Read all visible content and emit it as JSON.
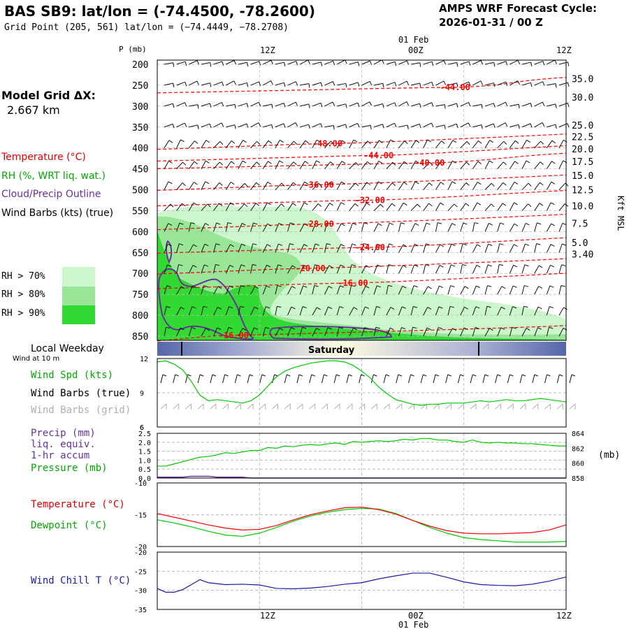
{
  "header": {
    "title": "BAS SB9:  lat/lon = (-74.4500, -78.2600)",
    "grid_point": "Grid Point (205, 561) lat/lon = (−74.4449, −78.2708)",
    "amps_line1": "AMPS WRF Forecast Cycle:",
    "amps_line2": "2026-01-31 / 00  Z"
  },
  "left_panel": {
    "model_grid_label": "Model Grid ΔX:",
    "model_grid_value": "2.667 km",
    "temperature_legend": "Temperature (°C)",
    "rh_legend": "RH (%, WRT liq. wat.)",
    "cloud_legend": "Cloud/Precip Outline",
    "wind_legend": "Wind Barbs (kts) (true)",
    "rh_levels": [
      "RH > 70%",
      "RH > 80%",
      "RH > 90%"
    ],
    "rh_colors": [
      "#ccf7cc",
      "#99e699",
      "#33d933"
    ],
    "local_weekday": "Local Weekday",
    "wind_at_10m": "Wind at 10 m",
    "wind_spd": "Wind Spd (kts)",
    "wind_barbs_true": "Wind Barbs (true)",
    "wind_barbs_grid": "Wind Barbs (grid)",
    "precip": "Precip (mm)",
    "liq_equiv": "liq. equiv.",
    "accum": "1-hr accum",
    "pressure": "Pressure (mb)",
    "temperature": "Temperature (°C)",
    "dewpoint": "Dewpoint (°C)",
    "wind_chill": "Wind Chill T (°C)"
  },
  "time_axis": {
    "top_date": "01 Feb",
    "bottom_date": "01 Feb",
    "ticks": [
      "12Z",
      "00Z",
      "12Z"
    ],
    "weekday": "Saturday"
  },
  "colors": {
    "temperature": "#ff0000",
    "rh_green": "#00cc00",
    "cloud": "#663399",
    "wind_grid": "#b0b0b0",
    "wind_chill": "#1a1aa6",
    "weekday_blue": "#5566aa",
    "weekday_light": "#fffbe0"
  },
  "chart_data": [
    {
      "type": "heatmap",
      "name": "cross-section",
      "ylabel": "P (mb)",
      "y_ticks": [
        200,
        250,
        300,
        350,
        400,
        450,
        500,
        550,
        600,
        650,
        700,
        750,
        800,
        850
      ],
      "ylim": [
        860,
        190
      ],
      "right_axis_label": "Kft MSL",
      "right_ticks": [
        "35.0",
        "30.0",
        "25.0",
        "22.5",
        "20.0",
        "17.5",
        "15.0",
        "12.5",
        "10.0",
        "7.5",
        "5.0",
        "3.40"
      ],
      "right_tick_pressures": [
        236,
        280,
        347,
        375,
        404,
        434,
        467,
        502,
        540,
        582,
        628,
        655
      ],
      "xlim_hours": [
        0,
        48
      ],
      "temperature_contours": [
        {
          "label": "-44.00",
          "p": 255,
          "x": 35
        },
        {
          "label": "-48.00",
          "p": 390,
          "x": 20
        },
        {
          "label": "-44.00",
          "p": 418,
          "x": 26
        },
        {
          "label": "-40.00",
          "p": 436,
          "x": 32
        },
        {
          "label": "-36.00",
          "p": 488,
          "x": 19
        },
        {
          "label": "-32.00",
          "p": 525,
          "x": 25
        },
        {
          "label": "-28.00",
          "p": 582,
          "x": 19
        },
        {
          "label": "-24.00",
          "p": 638,
          "x": 25
        },
        {
          "label": "-20.00",
          "p": 688,
          "x": 18
        },
        {
          "label": "-16.00",
          "p": 723,
          "x": 23
        },
        {
          "label": "-16.00",
          "p": 848,
          "x": 9
        }
      ]
    },
    {
      "type": "line",
      "name": "wind-speed",
      "ylim": [
        6,
        12
      ],
      "y_ticks": [
        6,
        9,
        12
      ],
      "x": [
        0,
        1,
        2,
        3,
        4,
        5,
        6,
        7,
        8,
        9,
        10,
        11,
        12,
        13,
        14,
        15,
        16,
        17,
        18,
        19,
        20,
        21,
        22,
        23,
        24,
        25,
        26,
        27,
        28,
        29,
        30,
        31,
        32,
        33,
        34,
        35,
        36,
        37,
        38,
        39,
        40,
        41,
        42,
        43,
        44,
        45,
        46,
        47,
        48
      ],
      "values": [
        11.7,
        11.8,
        11.5,
        11.0,
        10.0,
        8.8,
        8.3,
        8.4,
        8.3,
        8.2,
        8.1,
        8.3,
        8.8,
        9.6,
        10.4,
        10.9,
        11.2,
        11.4,
        11.6,
        11.7,
        11.8,
        11.8,
        11.7,
        11.4,
        10.9,
        10.3,
        9.5,
        8.9,
        8.4,
        8.2,
        8.0,
        7.9,
        8.0,
        8.0,
        8.1,
        8.1,
        8.1,
        8.2,
        8.3,
        8.2,
        8.3,
        8.4,
        8.3,
        8.3,
        8.4,
        8.5,
        8.4,
        8.3,
        8.2
      ]
    },
    {
      "type": "line",
      "name": "precip-pressure",
      "precip_ylim": [
        0,
        2.5
      ],
      "precip_ticks": [
        "2.5",
        "2.0",
        "1.5",
        "1.0",
        "0.5",
        "0.0"
      ],
      "pressure_ylim": [
        858,
        864
      ],
      "pressure_ticks": [
        864,
        862,
        860,
        858
      ],
      "pressure_unit": "(mb)",
      "x": [
        0,
        1,
        2,
        3,
        4,
        5,
        6,
        7,
        8,
        9,
        10,
        11,
        12,
        13,
        14,
        15,
        16,
        17,
        18,
        19,
        20,
        21,
        22,
        23,
        24,
        25,
        26,
        27,
        28,
        29,
        30,
        31,
        32,
        33,
        34,
        35,
        36,
        37,
        38,
        39,
        40,
        41,
        42,
        43,
        44,
        45,
        46,
        47,
        48
      ],
      "pressure": [
        859.6,
        859.6,
        859.9,
        860.2,
        860.5,
        860.8,
        860.9,
        861.1,
        861.4,
        861.3,
        861.5,
        861.7,
        861.7,
        862.1,
        862.0,
        862.3,
        862.2,
        862.4,
        862.5,
        862.4,
        862.6,
        862.7,
        862.5,
        862.9,
        862.8,
        862.9,
        863.0,
        862.9,
        863.0,
        863.2,
        863.1,
        863.3,
        863.3,
        863.1,
        863.1,
        862.9,
        862.8,
        863.1,
        862.8,
        862.7,
        862.8,
        862.7,
        862.7,
        862.6,
        862.6,
        862.5,
        862.4,
        862.3,
        862.3
      ],
      "precip": [
        0.05,
        0.05,
        0.05,
        0.05,
        0.1,
        0.1,
        0.1,
        0.05,
        0.05,
        0.05,
        0.05,
        0.0,
        0.0,
        0.0,
        0.0,
        0.0,
        0.0,
        0.0,
        0.0,
        0.0,
        0.0,
        0.0,
        0.0,
        0.0,
        0.0,
        0.0,
        0.0,
        0.0,
        0.0,
        0.0,
        0.0,
        0.0,
        0.0,
        0.0,
        0.0,
        0.0,
        0.0,
        0.0,
        0.0,
        0.0,
        0.0,
        0.0,
        0.0,
        0.0,
        0.0,
        0.0,
        0.0,
        0.0,
        0.0
      ]
    },
    {
      "type": "line",
      "name": "temperature-dewpoint",
      "ylim": [
        -20,
        -10
      ],
      "y_ticks": [
        -10,
        -15,
        -20
      ],
      "x": [
        0,
        2,
        4,
        6,
        8,
        10,
        12,
        14,
        16,
        18,
        20,
        22,
        24,
        26,
        28,
        30,
        32,
        34,
        36,
        38,
        40,
        42,
        44,
        46,
        48
      ],
      "temperature": [
        -14.8,
        -15.4,
        -16.0,
        -16.6,
        -17.1,
        -17.4,
        -17.3,
        -16.7,
        -15.8,
        -15.0,
        -14.4,
        -13.9,
        -13.8,
        -14.2,
        -14.9,
        -15.9,
        -16.8,
        -17.5,
        -17.9,
        -18.0,
        -18.0,
        -17.9,
        -17.8,
        -17.4,
        -16.6
      ],
      "dewpoint": [
        -15.8,
        -16.3,
        -16.9,
        -17.6,
        -18.2,
        -18.4,
        -17.9,
        -17.0,
        -16.0,
        -15.2,
        -14.6,
        -14.2,
        -14.0,
        -14.1,
        -14.8,
        -15.9,
        -17.0,
        -17.9,
        -18.6,
        -18.9,
        -19.1,
        -19.3,
        -19.3,
        -19.3,
        -19.2
      ]
    },
    {
      "type": "line",
      "name": "wind-chill",
      "ylim": [
        -35,
        -20
      ],
      "y_ticks": [
        -20,
        -25,
        -30,
        -35
      ],
      "x": [
        0,
        1,
        2,
        3,
        4,
        5,
        6,
        8,
        10,
        12,
        14,
        16,
        18,
        20,
        22,
        24,
        26,
        28,
        30,
        32,
        34,
        36,
        38,
        40,
        42,
        44,
        46,
        48
      ],
      "values": [
        -29.5,
        -30.5,
        -30.5,
        -29.8,
        -28.5,
        -27.2,
        -28.0,
        -28.5,
        -28.4,
        -28.6,
        -29.5,
        -29.6,
        -29.4,
        -29.0,
        -28.4,
        -28.0,
        -27.0,
        -26.2,
        -25.5,
        -25.5,
        -26.6,
        -27.8,
        -28.5,
        -28.7,
        -28.8,
        -28.4,
        -27.6,
        -26.5
      ]
    }
  ]
}
